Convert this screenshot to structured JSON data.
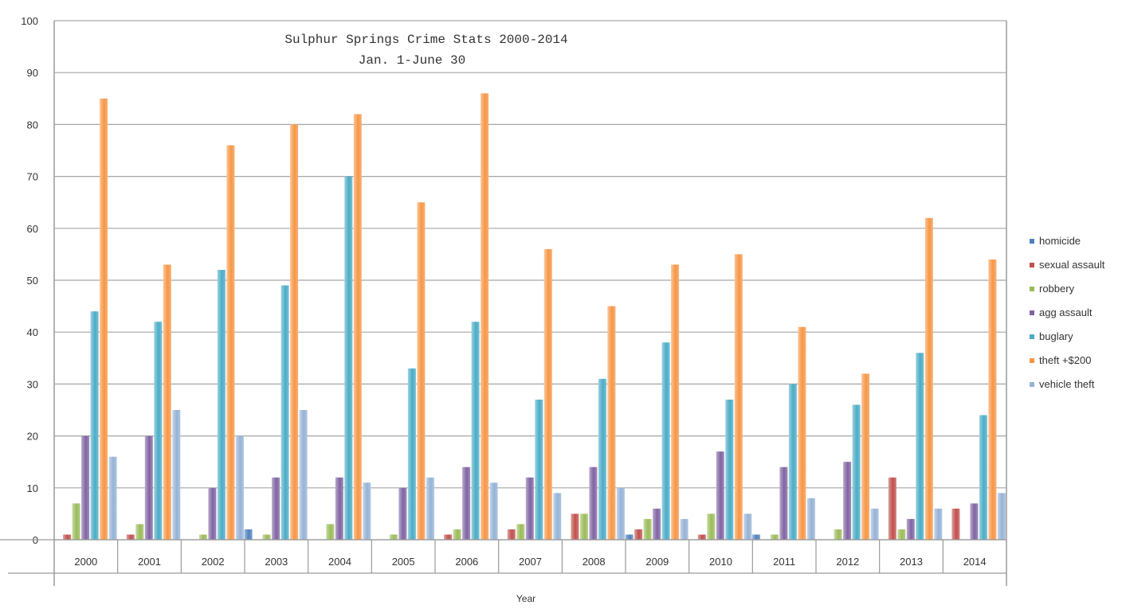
{
  "chart_data": {
    "type": "bar",
    "title": "Sulphur Springs Crime Stats 2000-2014",
    "subtitle": "Jan. 1-June 30",
    "xlabel": "Year",
    "ylabel": "",
    "ylim": [
      0,
      100
    ],
    "yticks": [
      0,
      10,
      20,
      30,
      40,
      50,
      60,
      70,
      80,
      90,
      100
    ],
    "grid": true,
    "legend_position": "right",
    "categories": [
      "2000",
      "2001",
      "2002",
      "2003",
      "2004",
      "2005",
      "2006",
      "2007",
      "2008",
      "2009",
      "2010",
      "2011",
      "2012",
      "2013",
      "2014"
    ],
    "series": [
      {
        "name": "homicide",
        "color": "#4f81bd",
        "values": [
          0,
          0,
          0,
          2,
          0,
          0,
          0,
          0,
          0,
          1,
          0,
          1,
          0,
          0,
          0
        ]
      },
      {
        "name": "sexual assault",
        "color": "#c0504d",
        "values": [
          1,
          1,
          0,
          0,
          0,
          0,
          1,
          2,
          5,
          2,
          1,
          0,
          0,
          12,
          6
        ]
      },
      {
        "name": "robbery",
        "color": "#9bbb59",
        "values": [
          7,
          3,
          1,
          1,
          3,
          1,
          2,
          3,
          5,
          4,
          5,
          1,
          2,
          2,
          0
        ]
      },
      {
        "name": "agg assault",
        "color": "#8064a2",
        "values": [
          20,
          20,
          10,
          12,
          12,
          10,
          14,
          12,
          14,
          6,
          17,
          14,
          15,
          4,
          7
        ]
      },
      {
        "name": "buglary",
        "color": "#4bacc6",
        "values": [
          44,
          42,
          52,
          49,
          70,
          33,
          42,
          27,
          31,
          38,
          27,
          30,
          26,
          36,
          24
        ]
      },
      {
        "name": "theft +$200",
        "color": "#f79646",
        "values": [
          85,
          53,
          76,
          80,
          82,
          65,
          86,
          56,
          45,
          53,
          55,
          41,
          32,
          62,
          54
        ]
      },
      {
        "name": "vehicle theft",
        "color": "#95b3d7",
        "values": [
          16,
          25,
          20,
          25,
          11,
          12,
          11,
          9,
          10,
          4,
          5,
          8,
          6,
          6,
          9
        ]
      }
    ]
  }
}
